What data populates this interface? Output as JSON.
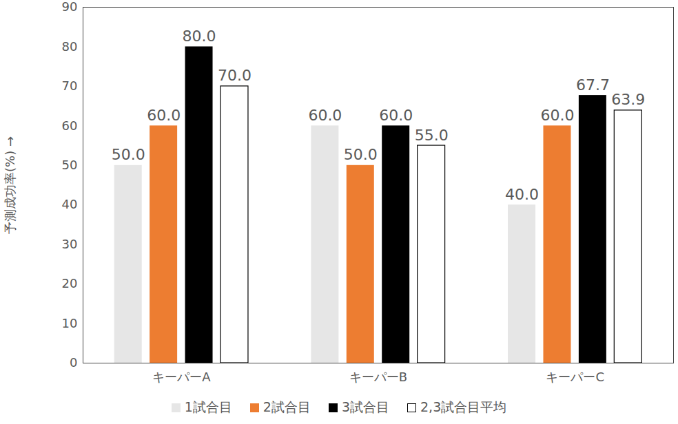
{
  "chart_data": {
    "type": "bar",
    "y_label": "予測成功率(%)",
    "categories": [
      "キーパーA",
      "キーパーB",
      "キーパーC"
    ],
    "series": [
      {
        "name": "1試合目",
        "color": "#e6e6e6",
        "values": [
          50,
          60,
          40
        ],
        "value_labels": [
          "50.0",
          "60.0",
          "40.0"
        ]
      },
      {
        "name": "2試合目",
        "color": "#ed7d31",
        "values": [
          60,
          50,
          60
        ],
        "value_labels": [
          "60.0",
          "50.0",
          "60.0"
        ]
      },
      {
        "name": "3試合目",
        "color": "#000000",
        "values": [
          80,
          60,
          67.7
        ],
        "value_labels": [
          "80.0",
          "60.0",
          "67.7"
        ]
      },
      {
        "name": "2,3試合目平均",
        "color": "#ffffff",
        "values": [
          70,
          55,
          63.9
        ],
        "value_labels": [
          "70.0",
          "55.0",
          "63.9"
        ]
      }
    ],
    "ylim": [
      0,
      90
    ],
    "yticks": [
      0,
      10,
      20,
      30,
      40,
      50,
      60,
      70,
      80,
      90
    ],
    "grid": false,
    "legend": "bottom",
    "data_labels": true
  }
}
